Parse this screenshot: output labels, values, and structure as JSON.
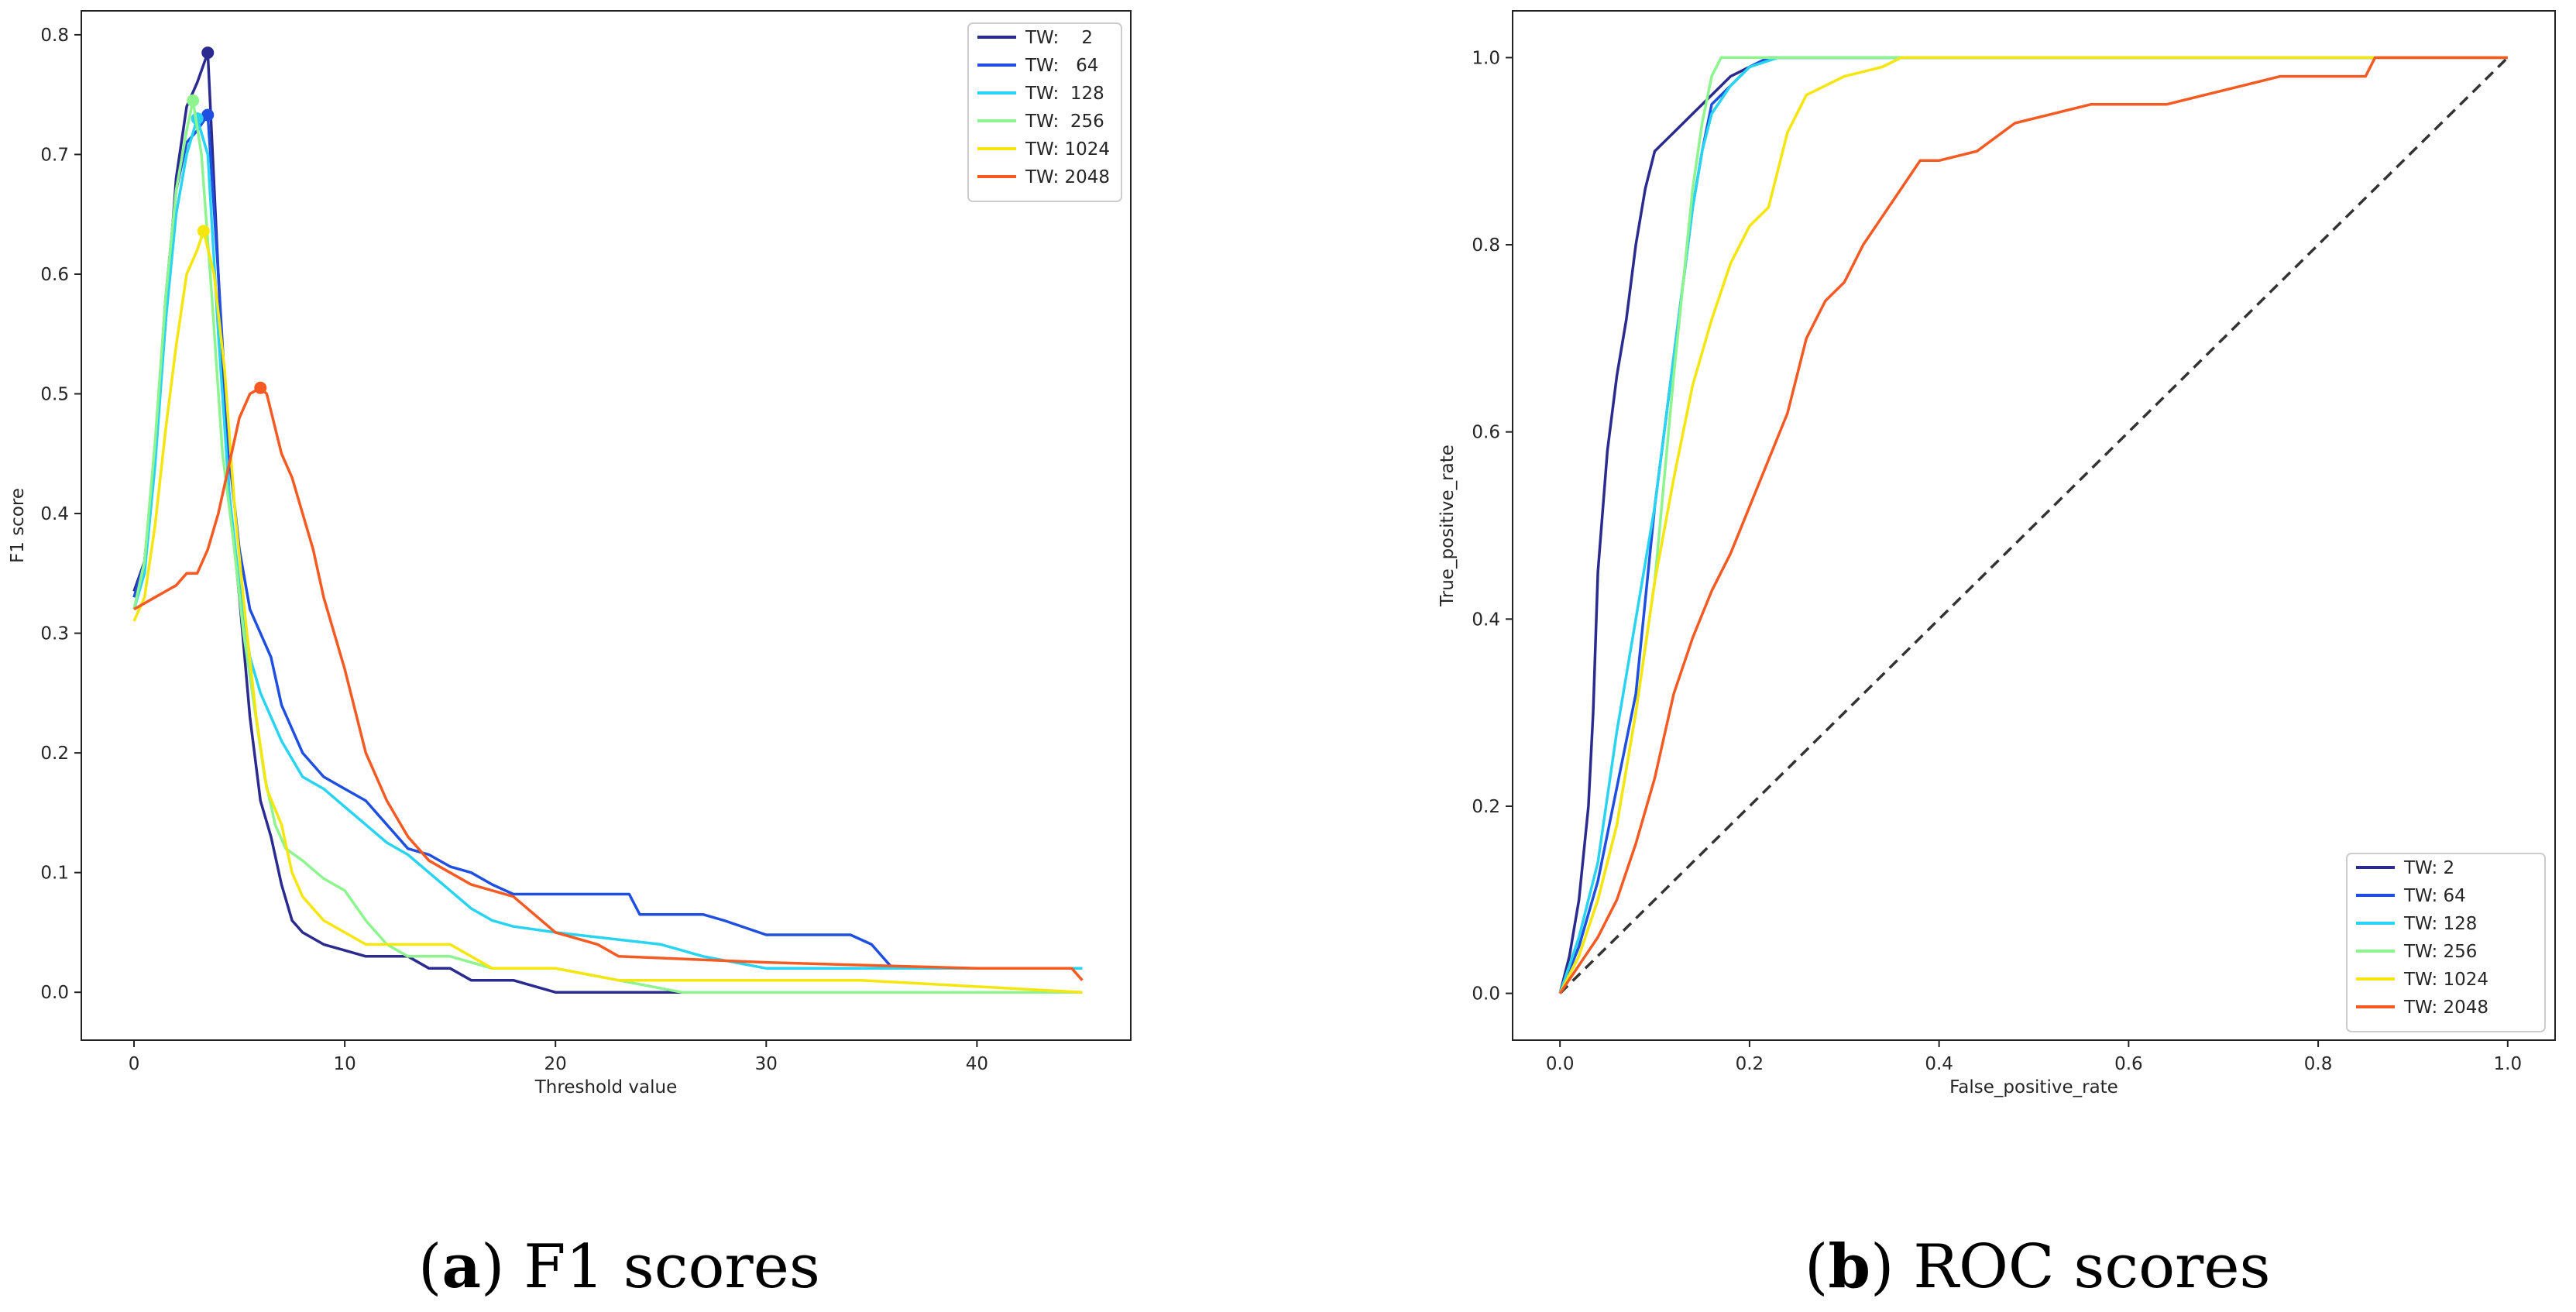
{
  "figure": {
    "captions": [
      {
        "open": "(",
        "letter": "a",
        "close": ")",
        "text": " F1 scores"
      },
      {
        "open": "(",
        "letter": "b",
        "close": ")",
        "text": " ROC scores"
      }
    ]
  },
  "colors": {
    "TW2": "#2b2b8f",
    "TW64": "#1f4fe0",
    "TW128": "#29d3f2",
    "TW256": "#8ef58e",
    "TW1024": "#f5e60e",
    "TW2048": "#f55a23",
    "diagonal": "#333333"
  },
  "chart_data": [
    {
      "type": "line",
      "title": "",
      "xlabel": "Threshold value",
      "ylabel": "F1 score",
      "xlim": [
        -2.5,
        47.3
      ],
      "ylim": [
        -0.04,
        0.82
      ],
      "xticks": [
        0,
        10,
        20,
        30,
        40
      ],
      "yticks": [
        0.0,
        0.1,
        0.2,
        0.3,
        0.4,
        0.5,
        0.6,
        0.7,
        0.8
      ],
      "xtick_labels": [
        "0",
        "10",
        "20",
        "30",
        "40"
      ],
      "ytick_labels": [
        "0.0",
        "0.1",
        "0.2",
        "0.3",
        "0.4",
        "0.5",
        "0.6",
        "0.7",
        "0.8"
      ],
      "legend_position": "top-right",
      "series": [
        {
          "name": "TW:    2",
          "color_key": "TW2",
          "marker": [
            3.5,
            0.785
          ],
          "x": [
            0,
            0.5,
            1,
            1.5,
            2,
            2.5,
            3,
            3.5,
            4,
            4.5,
            5,
            5.5,
            6,
            6.5,
            7,
            7.5,
            8,
            9,
            10,
            11,
            12,
            13,
            14,
            15,
            16,
            17,
            18,
            20,
            22,
            25,
            26,
            45
          ],
          "y": [
            0.335,
            0.36,
            0.45,
            0.56,
            0.68,
            0.74,
            0.76,
            0.785,
            0.6,
            0.42,
            0.33,
            0.23,
            0.16,
            0.13,
            0.09,
            0.06,
            0.05,
            0.04,
            0.035,
            0.03,
            0.03,
            0.03,
            0.02,
            0.02,
            0.01,
            0.01,
            0.01,
            0.0,
            0.0,
            0.0,
            0.0,
            0.0
          ]
        },
        {
          "name": "TW:   64",
          "color_key": "TW64",
          "marker": [
            3.5,
            0.733
          ],
          "x": [
            0,
            0.5,
            1,
            1.5,
            2,
            2.5,
            3,
            3.5,
            4,
            4.5,
            5,
            5.5,
            6,
            6.5,
            7,
            8,
            9,
            10,
            11,
            12,
            13,
            14,
            15,
            16,
            17,
            18,
            20,
            23.5,
            24,
            27,
            28,
            30,
            34,
            35,
            36,
            45
          ],
          "y": [
            0.33,
            0.36,
            0.45,
            0.58,
            0.67,
            0.71,
            0.72,
            0.733,
            0.6,
            0.45,
            0.37,
            0.32,
            0.3,
            0.28,
            0.24,
            0.2,
            0.18,
            0.17,
            0.16,
            0.14,
            0.12,
            0.115,
            0.105,
            0.1,
            0.09,
            0.082,
            0.082,
            0.082,
            0.065,
            0.065,
            0.06,
            0.048,
            0.048,
            0.04,
            0.02,
            0.02
          ]
        },
        {
          "name": "TW:  128",
          "color_key": "TW128",
          "marker": [
            3.0,
            0.73
          ],
          "x": [
            0,
            0.5,
            1,
            1.5,
            2,
            2.5,
            3,
            3.5,
            4,
            4.5,
            5,
            5.5,
            6,
            7,
            8,
            9,
            10,
            11,
            12,
            13,
            14,
            15,
            16,
            17,
            18,
            20,
            25,
            26,
            27,
            30,
            45
          ],
          "y": [
            0.32,
            0.35,
            0.44,
            0.56,
            0.65,
            0.7,
            0.73,
            0.7,
            0.55,
            0.42,
            0.34,
            0.28,
            0.25,
            0.21,
            0.18,
            0.17,
            0.155,
            0.14,
            0.125,
            0.115,
            0.1,
            0.085,
            0.07,
            0.06,
            0.055,
            0.05,
            0.04,
            0.035,
            0.03,
            0.02,
            0.02
          ]
        },
        {
          "name": "TW:  256",
          "color_key": "TW256",
          "marker": [
            2.8,
            0.745
          ],
          "x": [
            0,
            0.5,
            1,
            1.5,
            2,
            2.5,
            2.8,
            3.2,
            3.7,
            4.2,
            4.7,
            5.2,
            5.7,
            6.2,
            6.7,
            7.2,
            8,
            9,
            10,
            11,
            12,
            13,
            15,
            17,
            18,
            20,
            26,
            30,
            45
          ],
          "y": [
            0.32,
            0.36,
            0.46,
            0.58,
            0.67,
            0.72,
            0.745,
            0.7,
            0.58,
            0.45,
            0.38,
            0.3,
            0.24,
            0.18,
            0.14,
            0.12,
            0.11,
            0.095,
            0.085,
            0.06,
            0.04,
            0.03,
            0.03,
            0.02,
            0.02,
            0.02,
            0.0,
            0.0,
            0.0
          ]
        },
        {
          "name": "TW: 1024",
          "color_key": "TW1024",
          "marker": [
            3.3,
            0.636
          ],
          "x": [
            0,
            0.5,
            1,
            1.5,
            2,
            2.5,
            3,
            3.3,
            3.8,
            4.3,
            4.8,
            5.3,
            5.8,
            6.3,
            7,
            7.5,
            8,
            9,
            10,
            11,
            13,
            15,
            17,
            18,
            19,
            20,
            23,
            25,
            30,
            34.5,
            45
          ],
          "y": [
            0.31,
            0.33,
            0.39,
            0.47,
            0.54,
            0.6,
            0.62,
            0.636,
            0.6,
            0.52,
            0.4,
            0.31,
            0.23,
            0.17,
            0.14,
            0.1,
            0.08,
            0.06,
            0.05,
            0.04,
            0.04,
            0.04,
            0.02,
            0.02,
            0.02,
            0.02,
            0.01,
            0.01,
            0.01,
            0.01,
            0.0
          ]
        },
        {
          "name": "TW: 2048",
          "color_key": "TW2048",
          "marker": [
            6.0,
            0.505
          ],
          "x": [
            0,
            1,
            2,
            2.5,
            3,
            3.5,
            4,
            4.5,
            5,
            5.5,
            6,
            6.3,
            7,
            7.5,
            8,
            8.5,
            9,
            10,
            11,
            12,
            13,
            14,
            15,
            16,
            17,
            18,
            20,
            22,
            23,
            30,
            40,
            44.5,
            45
          ],
          "y": [
            0.32,
            0.33,
            0.34,
            0.35,
            0.35,
            0.37,
            0.4,
            0.44,
            0.48,
            0.5,
            0.505,
            0.5,
            0.45,
            0.43,
            0.4,
            0.37,
            0.33,
            0.27,
            0.2,
            0.16,
            0.13,
            0.11,
            0.1,
            0.09,
            0.085,
            0.08,
            0.05,
            0.04,
            0.03,
            0.025,
            0.02,
            0.02,
            0.01
          ]
        }
      ]
    },
    {
      "type": "line",
      "title": "",
      "xlabel": "False_positive_rate",
      "ylabel": "True_positive_rate",
      "xlim": [
        -0.05,
        1.05
      ],
      "ylim": [
        -0.05,
        1.05
      ],
      "xticks": [
        0.0,
        0.2,
        0.4,
        0.6,
        0.8,
        1.0
      ],
      "yticks": [
        0.0,
        0.2,
        0.4,
        0.6,
        0.8,
        1.0
      ],
      "xtick_labels": [
        "0.0",
        "0.2",
        "0.4",
        "0.6",
        "0.8",
        "1.0"
      ],
      "ytick_labels": [
        "0.0",
        "0.2",
        "0.4",
        "0.6",
        "0.8",
        "1.0"
      ],
      "legend_position": "bottom-right",
      "diagonal": {
        "x": [
          0,
          1
        ],
        "y": [
          0,
          1
        ],
        "style": "dashed"
      },
      "series": [
        {
          "name": "TW: 2",
          "color_key": "TW2",
          "x": [
            0,
            0.01,
            0.02,
            0.03,
            0.035,
            0.04,
            0.05,
            0.06,
            0.07,
            0.08,
            0.09,
            0.1,
            0.12,
            0.14,
            0.16,
            0.18,
            0.2,
            0.22,
            0.25,
            1.0
          ],
          "y": [
            0,
            0.04,
            0.1,
            0.2,
            0.3,
            0.45,
            0.58,
            0.66,
            0.72,
            0.8,
            0.86,
            0.9,
            0.92,
            0.94,
            0.96,
            0.98,
            0.99,
            1.0,
            1.0,
            1.0
          ]
        },
        {
          "name": "TW: 64",
          "color_key": "TW64",
          "x": [
            0,
            0.02,
            0.04,
            0.06,
            0.08,
            0.09,
            0.1,
            0.11,
            0.12,
            0.13,
            0.14,
            0.15,
            0.16,
            0.18,
            0.2,
            0.22,
            0.26,
            1.0
          ],
          "y": [
            0,
            0.05,
            0.12,
            0.22,
            0.32,
            0.42,
            0.52,
            0.6,
            0.68,
            0.76,
            0.84,
            0.9,
            0.95,
            0.97,
            0.99,
            1.0,
            1.0,
            1.0
          ]
        },
        {
          "name": "TW: 128",
          "color_key": "TW128",
          "x": [
            0,
            0.02,
            0.04,
            0.06,
            0.08,
            0.1,
            0.11,
            0.12,
            0.13,
            0.14,
            0.15,
            0.16,
            0.18,
            0.2,
            0.23,
            0.28,
            1.0
          ],
          "y": [
            0,
            0.06,
            0.14,
            0.28,
            0.4,
            0.52,
            0.6,
            0.68,
            0.76,
            0.84,
            0.9,
            0.94,
            0.97,
            0.99,
            1.0,
            1.0,
            1.0
          ]
        },
        {
          "name": "TW: 256",
          "color_key": "TW256",
          "x": [
            0,
            0.02,
            0.04,
            0.06,
            0.08,
            0.1,
            0.11,
            0.12,
            0.13,
            0.14,
            0.15,
            0.16,
            0.17,
            0.2,
            1.0
          ],
          "y": [
            0,
            0.04,
            0.1,
            0.18,
            0.3,
            0.44,
            0.55,
            0.66,
            0.76,
            0.86,
            0.93,
            0.98,
            1.0,
            1.0,
            1.0
          ]
        },
        {
          "name": "TW: 1024",
          "color_key": "TW1024",
          "x": [
            0,
            0.02,
            0.04,
            0.06,
            0.08,
            0.1,
            0.12,
            0.14,
            0.16,
            0.18,
            0.2,
            0.22,
            0.24,
            0.26,
            0.3,
            0.34,
            0.36,
            0.4,
            1.0
          ],
          "y": [
            0,
            0.04,
            0.1,
            0.18,
            0.3,
            0.44,
            0.55,
            0.65,
            0.72,
            0.78,
            0.82,
            0.84,
            0.92,
            0.96,
            0.98,
            0.99,
            1.0,
            1.0,
            1.0
          ]
        },
        {
          "name": "TW: 2048",
          "color_key": "TW2048",
          "x": [
            0,
            0.02,
            0.04,
            0.06,
            0.08,
            0.1,
            0.12,
            0.14,
            0.16,
            0.18,
            0.2,
            0.22,
            0.24,
            0.26,
            0.28,
            0.3,
            0.32,
            0.34,
            0.36,
            0.38,
            0.4,
            0.44,
            0.48,
            0.52,
            0.56,
            0.6,
            0.64,
            0.68,
            0.72,
            0.76,
            0.8,
            0.85,
            0.86,
            0.9,
            1.0
          ],
          "y": [
            0,
            0.03,
            0.06,
            0.1,
            0.16,
            0.23,
            0.32,
            0.38,
            0.43,
            0.47,
            0.52,
            0.57,
            0.62,
            0.7,
            0.74,
            0.76,
            0.8,
            0.83,
            0.86,
            0.89,
            0.89,
            0.9,
            0.93,
            0.94,
            0.95,
            0.95,
            0.95,
            0.96,
            0.97,
            0.98,
            0.98,
            0.98,
            1.0,
            1.0,
            1.0
          ]
        }
      ]
    }
  ]
}
